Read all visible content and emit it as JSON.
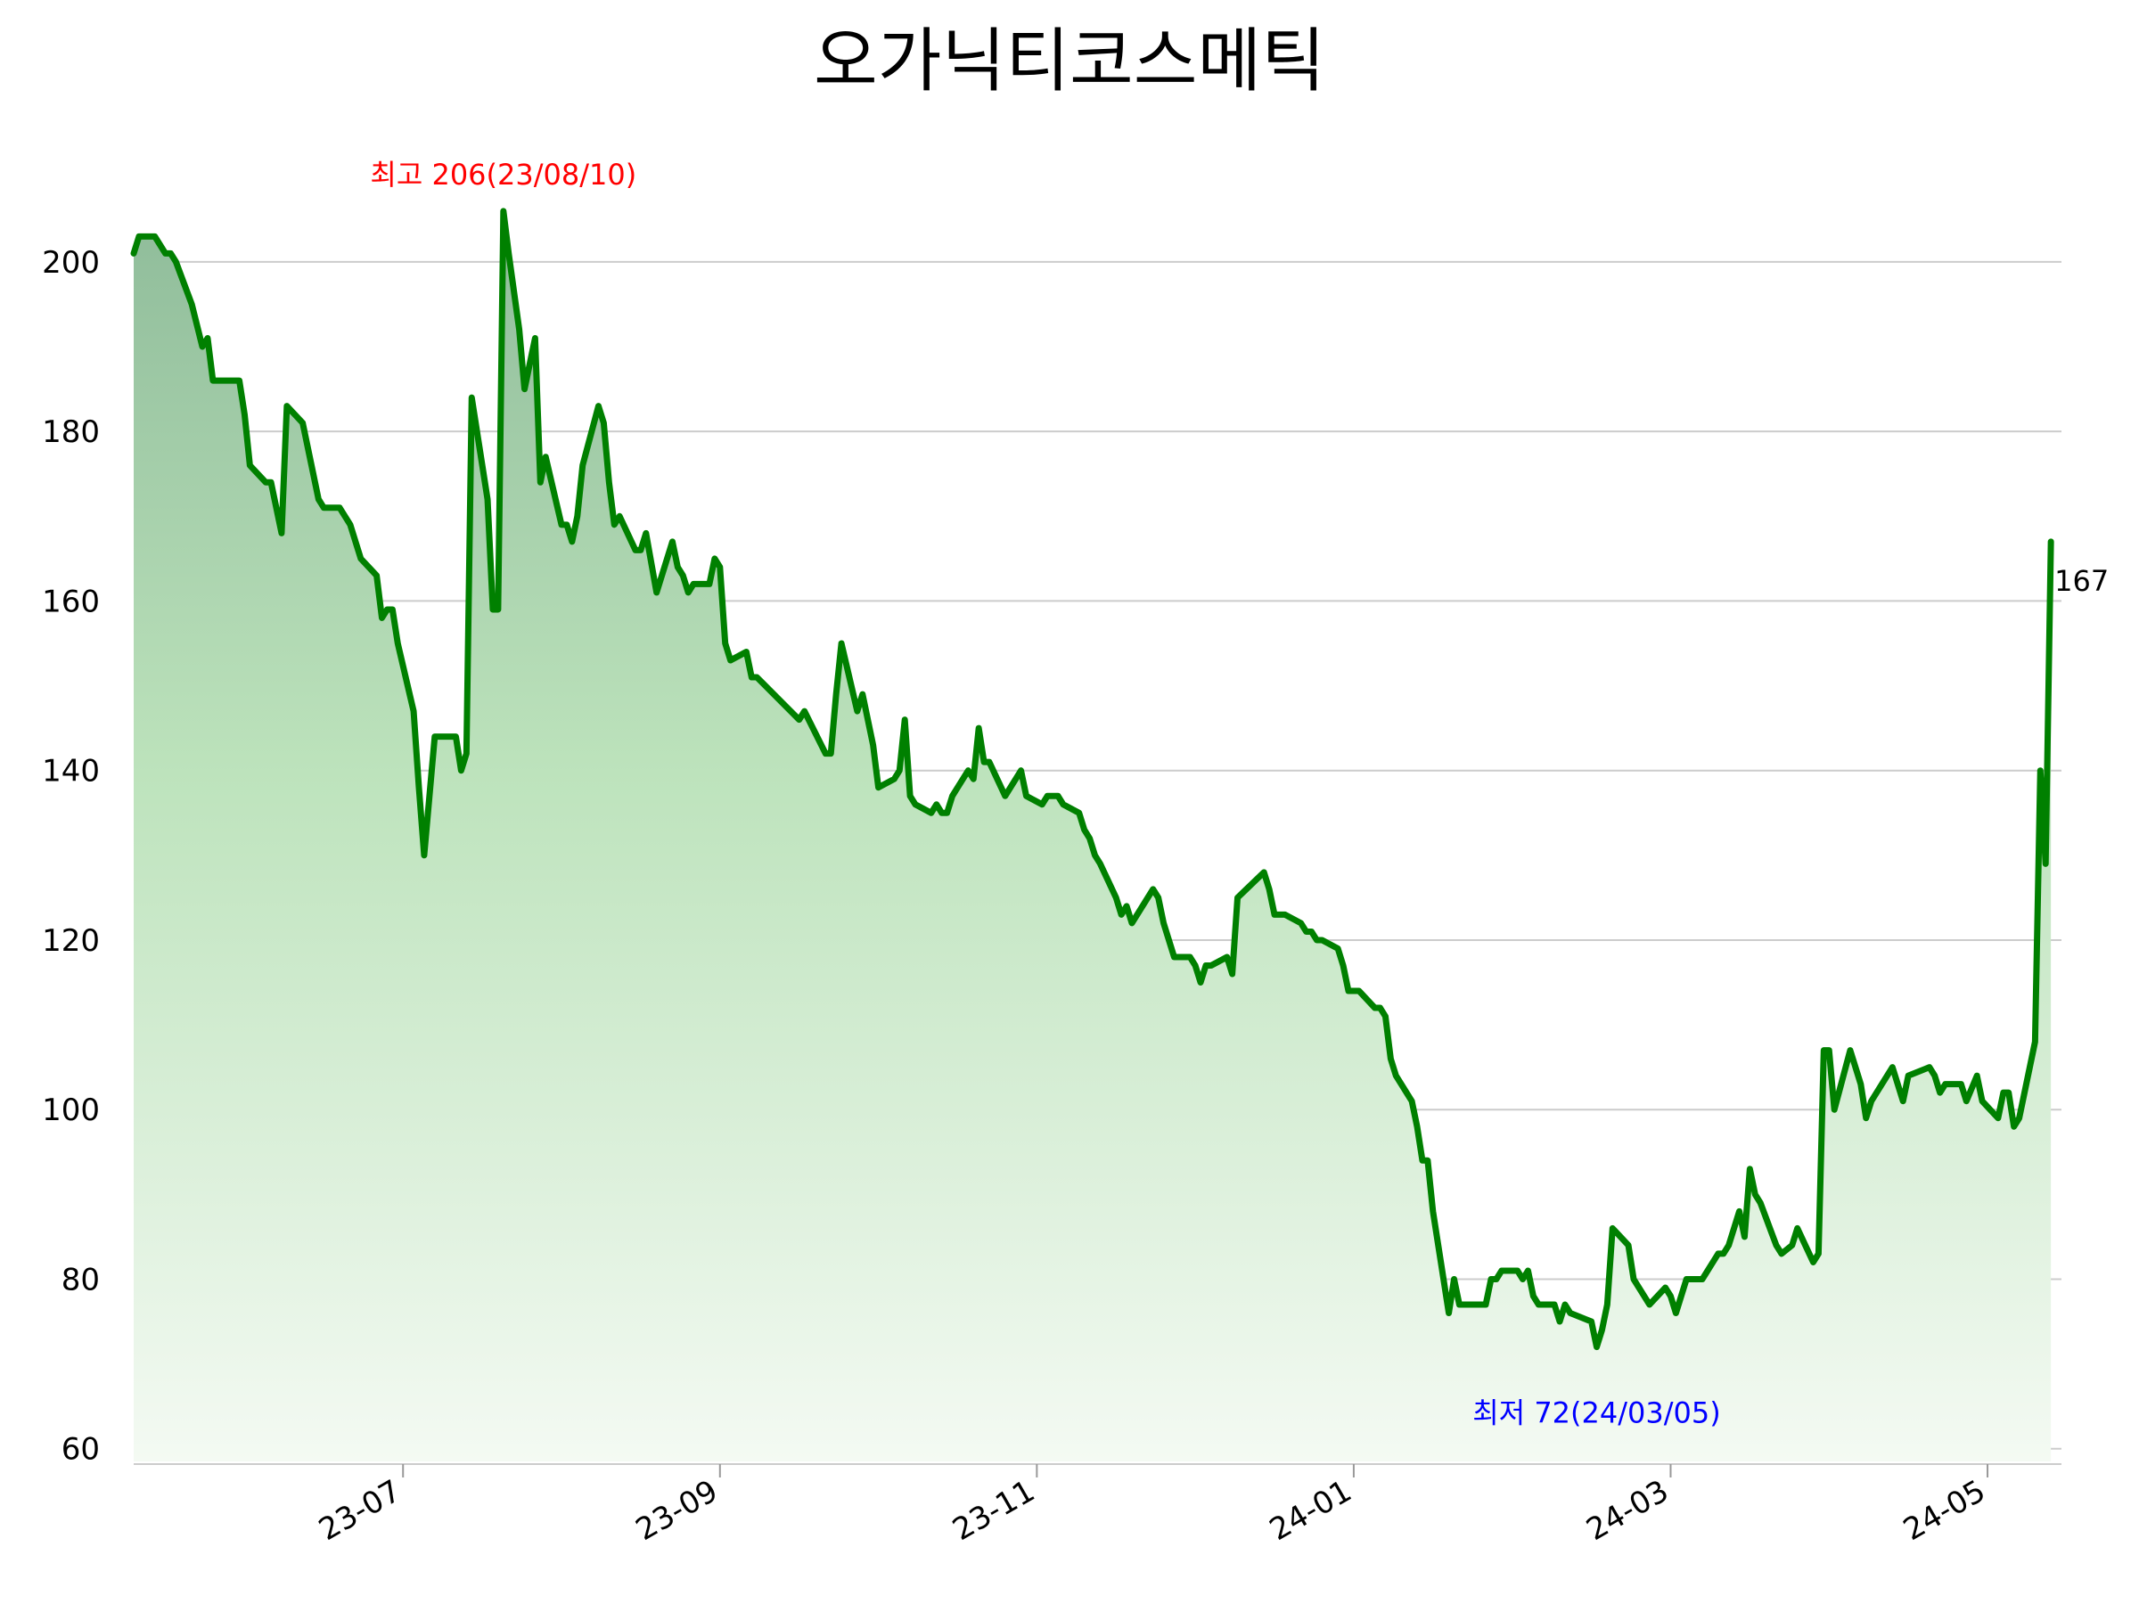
{
  "chart_data": {
    "type": "area",
    "title": "오가닉티코스메틱",
    "xlabel": "",
    "ylabel": "",
    "ylim": [
      58.5,
      212.5
    ],
    "yticks": [
      60,
      80,
      100,
      120,
      140,
      160,
      180,
      200
    ],
    "xticks": [
      "23-07",
      "23-09",
      "23-11",
      "24-01",
      "24-03",
      "24-05"
    ],
    "x_range_index": [
      0,
      365
    ],
    "xtick_index": [
      51,
      111,
      171,
      231,
      291,
      351
    ],
    "grid": "horizontal",
    "colors": {
      "line": "#008000",
      "fill_top": "#8fbc9a",
      "fill_bottom": "#f4faf3",
      "max_label": "#ff0000",
      "min_label": "#0000ff",
      "last_label": "#000000"
    },
    "annotations": {
      "max_label": "최고 206(23/08/10)",
      "min_label": "최저 72(24/03/05)",
      "last_label": "167"
    },
    "series": [
      {
        "points": [
          [
            0,
            201
          ],
          [
            1,
            203
          ],
          [
            4,
            203
          ],
          [
            6,
            201
          ],
          [
            7,
            201
          ],
          [
            8,
            200
          ],
          [
            11,
            195
          ],
          [
            13,
            190
          ],
          [
            14,
            191
          ],
          [
            15,
            186
          ],
          [
            20,
            186
          ],
          [
            21,
            182
          ],
          [
            22,
            176
          ],
          [
            25,
            174
          ],
          [
            26,
            174
          ],
          [
            28,
            168
          ],
          [
            29,
            183
          ],
          [
            32,
            181
          ],
          [
            35,
            172
          ],
          [
            36,
            171
          ],
          [
            39,
            171
          ],
          [
            41,
            169
          ],
          [
            43,
            165
          ],
          [
            46,
            163
          ],
          [
            47,
            158
          ],
          [
            48,
            159
          ],
          [
            49,
            159
          ],
          [
            50,
            155
          ],
          [
            53,
            147
          ],
          [
            54,
            138
          ],
          [
            55,
            130
          ],
          [
            57,
            144
          ],
          [
            61,
            144
          ],
          [
            62,
            140
          ],
          [
            63,
            142
          ],
          [
            64,
            184
          ],
          [
            67,
            172
          ],
          [
            68,
            159
          ],
          [
            69,
            159
          ],
          [
            70,
            206
          ],
          [
            71,
            201
          ],
          [
            73,
            192
          ],
          [
            74,
            185
          ],
          [
            76,
            191
          ],
          [
            77,
            174
          ],
          [
            78,
            177
          ],
          [
            81,
            169
          ],
          [
            82,
            169
          ],
          [
            83,
            167
          ],
          [
            84,
            170
          ],
          [
            85,
            176
          ],
          [
            88,
            183
          ],
          [
            89,
            181
          ],
          [
            90,
            174
          ],
          [
            91,
            169
          ],
          [
            92,
            170
          ],
          [
            95,
            166
          ],
          [
            96,
            166
          ],
          [
            97,
            168
          ],
          [
            99,
            161
          ],
          [
            102,
            167
          ],
          [
            103,
            164
          ],
          [
            104,
            163
          ],
          [
            105,
            161
          ],
          [
            106,
            162
          ],
          [
            109,
            162
          ],
          [
            110,
            165
          ],
          [
            111,
            164
          ],
          [
            112,
            155
          ],
          [
            113,
            153
          ],
          [
            116,
            154
          ],
          [
            117,
            151
          ],
          [
            118,
            151
          ],
          [
            126,
            146
          ],
          [
            127,
            147
          ],
          [
            131,
            142
          ],
          [
            132,
            142
          ],
          [
            133,
            149
          ],
          [
            134,
            155
          ],
          [
            137,
            147
          ],
          [
            138,
            149
          ],
          [
            140,
            143
          ],
          [
            141,
            138
          ],
          [
            144,
            139
          ],
          [
            145,
            140
          ],
          [
            146,
            146
          ],
          [
            147,
            137
          ],
          [
            148,
            136
          ],
          [
            151,
            135
          ],
          [
            152,
            136
          ],
          [
            153,
            135
          ],
          [
            154,
            135
          ],
          [
            155,
            137
          ],
          [
            158,
            140
          ],
          [
            159,
            139
          ],
          [
            160,
            145
          ],
          [
            161,
            141
          ],
          [
            162,
            141
          ],
          [
            165,
            137
          ],
          [
            168,
            140
          ],
          [
            169,
            137
          ],
          [
            172,
            136
          ],
          [
            173,
            137
          ],
          [
            175,
            137
          ],
          [
            176,
            136
          ],
          [
            179,
            135
          ],
          [
            180,
            133
          ],
          [
            181,
            132
          ],
          [
            182,
            130
          ],
          [
            183,
            129
          ],
          [
            186,
            125
          ],
          [
            187,
            123
          ],
          [
            188,
            124
          ],
          [
            189,
            122
          ],
          [
            192,
            125
          ],
          [
            193,
            126
          ],
          [
            194,
            125
          ],
          [
            195,
            122
          ],
          [
            197,
            118
          ],
          [
            200,
            118
          ],
          [
            201,
            117
          ],
          [
            202,
            115
          ],
          [
            203,
            117
          ],
          [
            204,
            117
          ],
          [
            207,
            118
          ],
          [
            208,
            116
          ],
          [
            209,
            125
          ],
          [
            214,
            128
          ],
          [
            215,
            126
          ],
          [
            216,
            123
          ],
          [
            218,
            123
          ],
          [
            221,
            122
          ],
          [
            222,
            121
          ],
          [
            223,
            121
          ],
          [
            224,
            120
          ],
          [
            225,
            120
          ],
          [
            228,
            119
          ],
          [
            229,
            117
          ],
          [
            230,
            114
          ],
          [
            232,
            114
          ],
          [
            235,
            112
          ],
          [
            236,
            112
          ],
          [
            237,
            111
          ],
          [
            238,
            106
          ],
          [
            239,
            104
          ],
          [
            242,
            101
          ],
          [
            243,
            98
          ],
          [
            244,
            94
          ],
          [
            245,
            94
          ],
          [
            246,
            88
          ],
          [
            249,
            76
          ],
          [
            250,
            80
          ],
          [
            251,
            77
          ],
          [
            256,
            77
          ],
          [
            257,
            80
          ],
          [
            258,
            80
          ],
          [
            259,
            81
          ],
          [
            262,
            81
          ],
          [
            263,
            80
          ],
          [
            264,
            81
          ],
          [
            265,
            78
          ],
          [
            266,
            77
          ],
          [
            269,
            77
          ],
          [
            270,
            75
          ],
          [
            271,
            77
          ],
          [
            272,
            76
          ],
          [
            276,
            75
          ],
          [
            277,
            72
          ],
          [
            278,
            74
          ],
          [
            279,
            77
          ],
          [
            280,
            86
          ],
          [
            283,
            84
          ],
          [
            284,
            80
          ],
          [
            287,
            77
          ],
          [
            290,
            79
          ],
          [
            291,
            78
          ],
          [
            292,
            76
          ],
          [
            294,
            80
          ],
          [
            297,
            80
          ],
          [
            300,
            83
          ],
          [
            301,
            83
          ],
          [
            302,
            84
          ],
          [
            304,
            88
          ],
          [
            305,
            85
          ],
          [
            306,
            93
          ],
          [
            307,
            90
          ],
          [
            308,
            89
          ],
          [
            311,
            84
          ],
          [
            312,
            83
          ],
          [
            314,
            84
          ],
          [
            315,
            86
          ],
          [
            318,
            82
          ],
          [
            319,
            83
          ],
          [
            320,
            107
          ],
          [
            321,
            107
          ],
          [
            322,
            100
          ],
          [
            325,
            107
          ],
          [
            327,
            103
          ],
          [
            328,
            99
          ],
          [
            329,
            101
          ],
          [
            333,
            105
          ],
          [
            335,
            101
          ],
          [
            336,
            104
          ],
          [
            340,
            105
          ],
          [
            341,
            104
          ],
          [
            342,
            102
          ],
          [
            343,
            103
          ],
          [
            346,
            103
          ],
          [
            347,
            101
          ],
          [
            349,
            104
          ],
          [
            350,
            101
          ],
          [
            353,
            99
          ],
          [
            354,
            102
          ],
          [
            355,
            102
          ],
          [
            356,
            98
          ],
          [
            357,
            99
          ],
          [
            360,
            108
          ],
          [
            361,
            140
          ],
          [
            362,
            129
          ],
          [
            363,
            167
          ]
        ]
      }
    ]
  }
}
